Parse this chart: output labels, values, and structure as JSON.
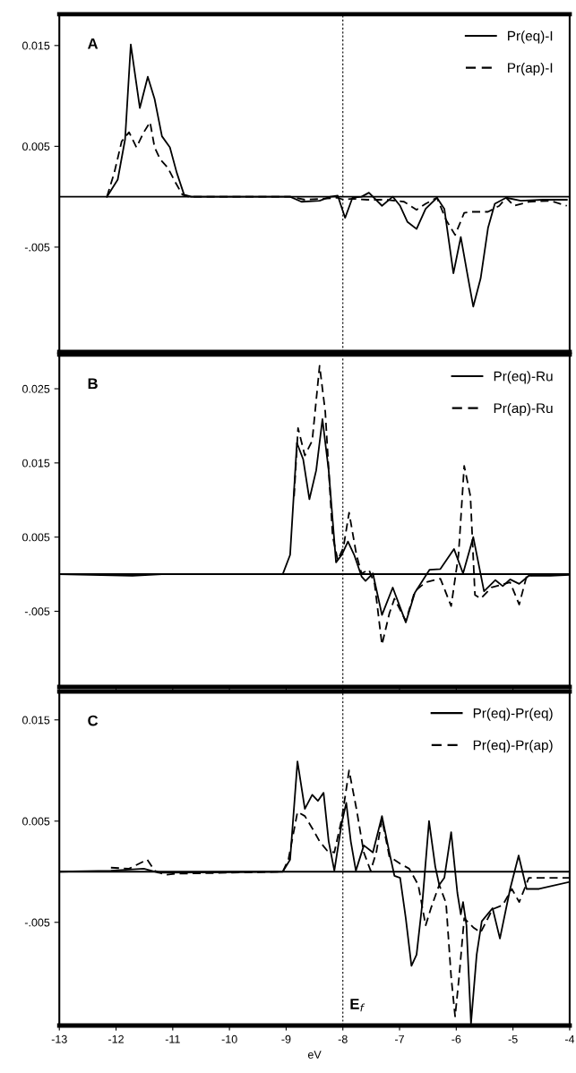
{
  "chart_data": [
    {
      "type": "line",
      "title": "A",
      "xlim": [
        -13,
        -4
      ],
      "ylim": [
        -0.0154,
        0.0181
      ],
      "yticks": [
        {
          "value": 0.015,
          "label": "0.015"
        },
        {
          "value": 0.005,
          "label": "0.005"
        },
        {
          "value": -0.005,
          "label": "-.005"
        }
      ],
      "xticks": [
        -13,
        -12,
        -11,
        -10,
        -9,
        -8,
        -7,
        -6,
        -5,
        -4
      ],
      "tick_labels": "y",
      "legend": "top right",
      "grid": false,
      "ref_lines": [
        {
          "axis": "x",
          "value": -8,
          "line_style": "dotted",
          "color": "#000000"
        },
        {
          "axis": "y",
          "value": 0,
          "line_style": "solid",
          "color": "#000000"
        }
      ],
      "series": [
        {
          "name": "Pr(eq)-I",
          "color": "#000000",
          "line_style": "solid",
          "x": [
            -12.16,
            -11.97,
            -11.84,
            -11.74,
            -11.58,
            -11.44,
            -11.32,
            -11.19,
            -11.05,
            -10.93,
            -10.8,
            -10.67,
            -8.93,
            -8.73,
            -8.41,
            -8.22,
            -8.09,
            -7.96,
            -7.83,
            -7.67,
            -7.54,
            -7.31,
            -7.12,
            -6.99,
            -6.86,
            -6.7,
            -6.54,
            -6.34,
            -6.21,
            -6.05,
            -5.92,
            -5.79,
            -5.7,
            -5.57,
            -5.44,
            -5.32,
            -5.12,
            -4.86,
            -4.47,
            -4.05
          ],
          "values": [
            0,
            0.0017,
            0.0057,
            0.0151,
            0.0088,
            0.0119,
            0.0097,
            0.006,
            0.0049,
            0.0024,
            0.0002,
            0,
            0,
            -0.0005,
            -0.0004,
            0,
            0.0001,
            -0.0021,
            -0.0001,
            0,
            0.0004,
            -0.0009,
            0,
            -0.0009,
            -0.0025,
            -0.0032,
            -0.0012,
            -0.0001,
            -0.0012,
            -0.0076,
            -0.004,
            -0.0081,
            -0.0109,
            -0.0081,
            -0.0031,
            -0.0007,
            -0.0001,
            -0.0004,
            -0.0003,
            -0.0003
          ]
        },
        {
          "name": "Pr(ap)-I",
          "color": "#000000",
          "line_style": "dashed",
          "x": [
            -12.16,
            -12.03,
            -11.9,
            -11.77,
            -11.64,
            -11.51,
            -11.4,
            -11.32,
            -11.22,
            -11.09,
            -10.96,
            -10.83,
            -10.71,
            -8.93,
            -8.67,
            -8.09,
            -7.99,
            -7.83,
            -7.57,
            -7.24,
            -6.92,
            -6.7,
            -6.54,
            -6.34,
            -6.18,
            -6.02,
            -5.86,
            -5.76,
            -5.44,
            -5.24,
            -5.12,
            -4.98,
            -4.72,
            -4.34,
            -4.05
          ],
          "values": [
            0,
            0.0024,
            0.0055,
            0.0064,
            0.0049,
            0.0064,
            0.0074,
            0.0049,
            0.0037,
            0.0029,
            0.0015,
            0.0002,
            0,
            0,
            -0.0003,
            -0.0001,
            -0.0003,
            -0.0002,
            -0.0003,
            -0.0003,
            -0.0005,
            -0.0013,
            -0.0007,
            -0.0001,
            -0.0023,
            -0.0038,
            -0.0016,
            -0.0015,
            -0.0015,
            -0.0009,
            -0.0001,
            -0.0009,
            -0.0005,
            -0.0004,
            -0.0009
          ]
        }
      ]
    },
    {
      "type": "line",
      "title": "B",
      "xlim": [
        -13,
        -4
      ],
      "ylim": [
        -0.0152,
        0.0296
      ],
      "yticks": [
        {
          "value": 0.025,
          "label": "0.025"
        },
        {
          "value": 0.015,
          "label": "0.015"
        },
        {
          "value": 0.005,
          "label": "0.005"
        },
        {
          "value": -0.005,
          "label": "-.005"
        }
      ],
      "xticks": [
        -13,
        -12,
        -11,
        -10,
        -9,
        -8,
        -7,
        -6,
        -5,
        -4
      ],
      "tick_labels": "y",
      "legend": "top right",
      "grid": false,
      "ref_lines": [
        {
          "axis": "x",
          "value": -8,
          "line_style": "dotted",
          "color": "#000000"
        },
        {
          "axis": "y",
          "value": 0,
          "line_style": "solid",
          "color": "#000000"
        }
      ],
      "series": [
        {
          "name": "Pr(eq)-Ru",
          "color": "#000000",
          "line_style": "solid",
          "x": [
            -13,
            -11.71,
            -11.19,
            -9.06,
            -8.93,
            -8.81,
            -8.7,
            -8.59,
            -8.47,
            -8.36,
            -8.25,
            -8.12,
            -8.02,
            -7.91,
            -7.8,
            -7.67,
            -7.6,
            -7.47,
            -7.31,
            -7.12,
            -6.89,
            -6.73,
            -6.47,
            -6.28,
            -6.04,
            -5.88,
            -5.7,
            -5.51,
            -5.31,
            -5.18,
            -5.05,
            -4.89,
            -4.72,
            -4.34,
            -4
          ],
          "values": [
            0,
            -0.0002,
            0,
            0,
            0.0026,
            0.0177,
            0.0155,
            0.0101,
            0.014,
            0.0209,
            0.014,
            0.0016,
            0.0026,
            0.0044,
            0.0026,
            -0.0003,
            -0.0009,
            0.0001,
            -0.0055,
            -0.0018,
            -0.0065,
            -0.0025,
            0.0006,
            0.0007,
            0.0034,
            0.0001,
            0.005,
            -0.0023,
            -0.0008,
            -0.0016,
            -0.0007,
            -0.0013,
            -0.0002,
            -0.0002,
            -0.0001
          ]
        },
        {
          "name": "Pr(ap)-Ru",
          "color": "#000000",
          "line_style": "dashed",
          "x": [
            -8.86,
            -8.79,
            -8.67,
            -8.54,
            -8.41,
            -8.31,
            -8.18,
            -8.09,
            -7.99,
            -7.89,
            -7.76,
            -7.67,
            -7.54,
            -7.44,
            -7.31,
            -7.18,
            -7.09,
            -6.89,
            -6.73,
            -6.54,
            -6.28,
            -6.09,
            -5.96,
            -5.86,
            -5.75,
            -5.67,
            -5.57,
            -5.38,
            -5.05,
            -4.89,
            -4.76,
            -4.6,
            -4
          ],
          "values": [
            0.0105,
            0.0197,
            0.016,
            0.018,
            0.0281,
            0.0219,
            0.0051,
            0.0019,
            0.0036,
            0.0083,
            0.0026,
            0.0001,
            0.0006,
            -0.0013,
            -0.0095,
            -0.0053,
            -0.0033,
            -0.0063,
            -0.0023,
            -0.0011,
            -0.0006,
            -0.0043,
            0.0026,
            0.0146,
            0.0105,
            -0.0028,
            -0.0033,
            -0.0018,
            -0.0011,
            -0.0041,
            -0.0003,
            0,
            -0.0001
          ]
        }
      ]
    },
    {
      "type": "line",
      "title": "C",
      "xlabel": "eV",
      "xlim": [
        -13,
        -4
      ],
      "ylim": [
        -0.0152,
        0.0178
      ],
      "yticks": [
        {
          "value": 0.015,
          "label": "0.015"
        },
        {
          "value": 0.005,
          "label": "0.005"
        },
        {
          "value": -0.005,
          "label": "-.005"
        }
      ],
      "xticks": [
        -13,
        -12,
        -11,
        -10,
        -9,
        -8,
        -7,
        -6,
        -5,
        -4
      ],
      "legend": "top right",
      "grid": false,
      "ref_lines": [
        {
          "axis": "x",
          "value": -8,
          "line_style": "dotted",
          "color": "#000000",
          "label": "E$_{f}$"
        },
        {
          "axis": "y",
          "value": 0,
          "line_style": "solid",
          "color": "#000000"
        }
      ],
      "series": [
        {
          "name": "Pr(eq)-Pr(eq)",
          "color": "#000000",
          "line_style": "solid",
          "x": [
            -13,
            -12.09,
            -11.51,
            -11.25,
            -9.06,
            -8.93,
            -8.8,
            -8.67,
            -8.54,
            -8.44,
            -8.34,
            -8.25,
            -8.15,
            -8.02,
            -7.94,
            -7.86,
            -7.77,
            -7.63,
            -7.47,
            -7.31,
            -7.18,
            -7.09,
            -6.99,
            -6.89,
            -6.79,
            -6.7,
            -6.6,
            -6.48,
            -6.37,
            -6.3,
            -6.21,
            -6.09,
            -5.98,
            -5.92,
            -5.88,
            -5.82,
            -5.74,
            -5.64,
            -5.55,
            -5.36,
            -5.23,
            -5.05,
            -4.9,
            -4.76,
            -4.54,
            -4
          ],
          "values": [
            0,
            0.0001,
            0.0003,
            -0.0001,
            0,
            0.0012,
            0.0109,
            0.0062,
            0.0076,
            0.007,
            0.0078,
            0.003,
            0.0001,
            0.0048,
            0.0068,
            0.003,
            0.0001,
            0.0026,
            0.0019,
            0.0055,
            0.0019,
            -0.0004,
            -0.0006,
            -0.0046,
            -0.0093,
            -0.0082,
            -0.0032,
            0.005,
            0.0005,
            -0.0013,
            -0.0006,
            0.0039,
            -0.0021,
            -0.0042,
            -0.003,
            -0.0053,
            -0.015,
            -0.0082,
            -0.0049,
            -0.0036,
            -0.0066,
            -0.0017,
            0.0016,
            -0.0017,
            -0.0017,
            -0.001
          ]
        },
        {
          "name": "Pr(eq)-Pr(ap)",
          "color": "#000000",
          "line_style": "dashed",
          "x": [
            -12.09,
            -11.77,
            -11.45,
            -11.32,
            -11.13,
            -10.93,
            -9.06,
            -8.96,
            -8.8,
            -8.67,
            -8.54,
            -8.41,
            -8.28,
            -8.15,
            -8.02,
            -7.89,
            -7.76,
            -7.63,
            -7.51,
            -7.41,
            -7.31,
            -7.18,
            -6.99,
            -6.83,
            -6.67,
            -6.54,
            -6.44,
            -6.3,
            -6.18,
            -6.09,
            -6.02,
            -5.95,
            -5.86,
            -5.7,
            -5.57,
            -5.36,
            -5.18,
            -5.02,
            -4.89,
            -4.72,
            -4
          ],
          "values": [
            0.0004,
            0.0003,
            0.0012,
            0.0001,
            -0.0003,
            -0.0002,
            0,
            0.0012,
            0.0059,
            0.0055,
            0.0043,
            0.003,
            0.0021,
            0.0019,
            0.0052,
            0.01,
            0.0062,
            0.0019,
            0.0001,
            0.0019,
            0.0052,
            0.0015,
            0.0008,
            0.0003,
            -0.0013,
            -0.0053,
            -0.0035,
            -0.0013,
            -0.0031,
            -0.0104,
            -0.0143,
            -0.0104,
            -0.0046,
            -0.0055,
            -0.006,
            -0.0037,
            -0.0033,
            -0.0017,
            -0.003,
            -0.0006,
            -0.0006
          ]
        }
      ]
    }
  ]
}
